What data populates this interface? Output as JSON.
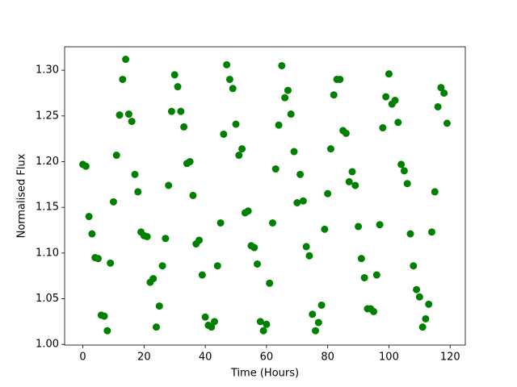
{
  "chart_data": {
    "type": "scatter",
    "x_label": "Time (Hours)",
    "y_label": "Normalised Flux",
    "color": "#008000",
    "x": [
      0,
      1,
      2,
      3,
      4,
      5,
      6,
      7,
      8,
      9,
      10,
      11,
      12,
      13,
      14,
      15,
      16,
      17,
      18,
      19,
      20,
      21,
      22,
      23,
      24,
      25,
      26,
      27,
      28,
      29,
      30,
      31,
      32,
      33,
      34,
      35,
      36,
      37,
      38,
      39,
      40,
      41,
      42,
      43,
      44,
      45,
      46,
      47,
      48,
      49,
      50,
      51,
      52,
      53,
      54,
      55,
      56,
      57,
      58,
      59,
      60,
      61,
      62,
      63,
      64,
      65,
      66,
      67,
      68,
      69,
      70,
      71,
      72,
      73,
      74,
      75,
      76,
      77,
      78,
      79,
      80,
      81,
      82,
      83,
      84,
      85,
      86,
      87,
      88,
      89,
      90,
      91,
      92,
      93,
      94,
      95,
      96,
      97,
      98,
      99,
      100,
      101,
      102,
      103,
      104,
      105,
      106,
      107,
      108,
      109,
      110,
      111,
      112,
      113,
      114,
      115,
      116,
      117,
      118,
      119
    ],
    "values": [
      1.197,
      1.195,
      1.14,
      1.121,
      1.095,
      1.094,
      1.032,
      1.031,
      1.015,
      1.089,
      1.156,
      1.207,
      1.251,
      1.29,
      1.312,
      1.252,
      1.244,
      1.186,
      1.167,
      1.123,
      1.119,
      1.118,
      1.068,
      1.072,
      1.019,
      1.042,
      1.086,
      1.116,
      1.174,
      1.255,
      1.295,
      1.282,
      1.255,
      1.238,
      1.198,
      1.2,
      1.163,
      1.11,
      1.114,
      1.076,
      1.03,
      1.021,
      1.019,
      1.025,
      1.086,
      1.133,
      1.23,
      1.306,
      1.29,
      1.28,
      1.241,
      1.207,
      1.214,
      1.144,
      1.146,
      1.108,
      1.106,
      1.088,
      1.025,
      1.015,
      1.022,
      1.067,
      1.133,
      1.192,
      1.24,
      1.305,
      1.27,
      1.278,
      1.252,
      1.211,
      1.155,
      1.186,
      1.157,
      1.107,
      1.097,
      1.033,
      1.015,
      1.024,
      1.043,
      1.126,
      1.165,
      1.214,
      1.273,
      1.29,
      1.29,
      1.234,
      1.231,
      1.178,
      1.189,
      1.174,
      1.129,
      1.094,
      1.073,
      1.039,
      1.039,
      1.036,
      1.076,
      1.131,
      1.237,
      1.271,
      1.296,
      1.263,
      1.267,
      1.243,
      1.197,
      1.19,
      1.176,
      1.121,
      1.086,
      1.06,
      1.052,
      1.019,
      1.028,
      1.044,
      1.123,
      1.167,
      1.26,
      1.281,
      1.275,
      1.242
    ],
    "xlim": [
      -5.95,
      124.95
    ],
    "xticks": [
      0,
      20,
      40,
      60,
      80,
      100,
      120
    ],
    "ylim": [
      0.9993,
      1.3257
    ],
    "yticks": [
      {
        "value": 1,
        "label": "1.00"
      },
      1.05,
      {
        "value": 1.1,
        "label": "1.10"
      },
      1.15,
      {
        "value": 1.2,
        "label": "1.20"
      },
      1.25,
      {
        "value": 1.3,
        "label": "1.30"
      }
    ]
  }
}
